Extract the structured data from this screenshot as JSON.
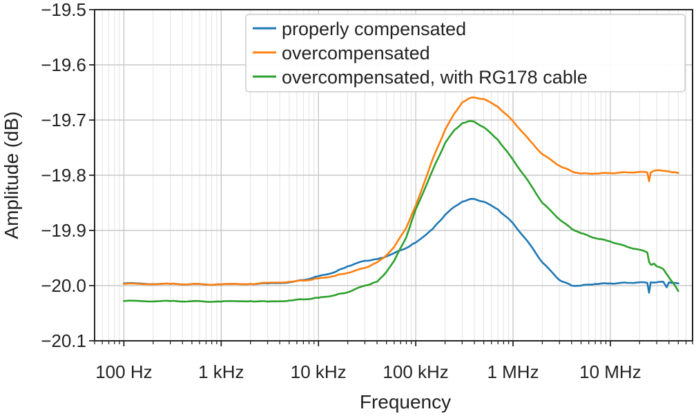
{
  "chart_data": {
    "type": "line",
    "xscale": "log",
    "xlabel": "Frequency",
    "ylabel": "Amplitude (dB)",
    "xlim": [
      50,
      70000000
    ],
    "ylim": [
      -20.1,
      -19.5
    ],
    "x_ticks": [
      {
        "value": 100,
        "label": "100 Hz"
      },
      {
        "value": 1000,
        "label": "1 kHz"
      },
      {
        "value": 10000,
        "label": "10 kHz"
      },
      {
        "value": 100000,
        "label": "100 kHz"
      },
      {
        "value": 1000000,
        "label": "1 MHz"
      },
      {
        "value": 10000000,
        "label": "10 MHz"
      }
    ],
    "y_ticks": [
      {
        "value": -19.5,
        "label": "−19.5"
      },
      {
        "value": -19.6,
        "label": "−19.6"
      },
      {
        "value": -19.7,
        "label": "−19.7"
      },
      {
        "value": -19.8,
        "label": "−19.8"
      },
      {
        "value": -19.9,
        "label": "−19.9"
      },
      {
        "value": -20.0,
        "label": "−20.0"
      },
      {
        "value": -20.1,
        "label": "−20.1"
      }
    ],
    "grid": true,
    "legend_position": "top-right",
    "series": [
      {
        "name": "properly compensated",
        "color": "#1f77b4",
        "points": [
          [
            100,
            -19.996
          ],
          [
            300,
            -19.997
          ],
          [
            1000,
            -19.998
          ],
          [
            2000,
            -19.997
          ],
          [
            3000,
            -19.996
          ],
          [
            5000,
            -19.994
          ],
          [
            7000,
            -19.99
          ],
          [
            10000,
            -19.983
          ],
          [
            15000,
            -19.975
          ],
          [
            20000,
            -19.965
          ],
          [
            30000,
            -19.955
          ],
          [
            40000,
            -19.952
          ],
          [
            50000,
            -19.947
          ],
          [
            60000,
            -19.941
          ],
          [
            80000,
            -19.932
          ],
          [
            100000,
            -19.922
          ],
          [
            150000,
            -19.897
          ],
          [
            200000,
            -19.872
          ],
          [
            250000,
            -19.857
          ],
          [
            300000,
            -19.848
          ],
          [
            350000,
            -19.844
          ],
          [
            400000,
            -19.843
          ],
          [
            500000,
            -19.848
          ],
          [
            700000,
            -19.862
          ],
          [
            1000000,
            -19.887
          ],
          [
            1500000,
            -19.926
          ],
          [
            2000000,
            -19.958
          ],
          [
            3000000,
            -19.99
          ],
          [
            4000000,
            -20.0
          ],
          [
            5000000,
            -20.0
          ],
          [
            7000000,
            -19.997
          ],
          [
            10000000,
            -19.996
          ],
          [
            15000000,
            -19.995
          ],
          [
            20000000,
            -19.994
          ],
          [
            24000000,
            -19.995
          ],
          [
            25000000,
            -20.013
          ],
          [
            26000000,
            -19.994
          ],
          [
            30000000,
            -19.994
          ],
          [
            35000000,
            -19.993
          ],
          [
            38000000,
            -20.003
          ],
          [
            40000000,
            -19.994
          ],
          [
            50000000,
            -19.996
          ]
        ]
      },
      {
        "name": "overcompensated",
        "color": "#ff7f0e",
        "points": [
          [
            100,
            -19.997
          ],
          [
            300,
            -19.997
          ],
          [
            1000,
            -19.998
          ],
          [
            2000,
            -19.997
          ],
          [
            3000,
            -19.995
          ],
          [
            5000,
            -19.993
          ],
          [
            7000,
            -19.991
          ],
          [
            10000,
            -19.987
          ],
          [
            15000,
            -19.982
          ],
          [
            20000,
            -19.977
          ],
          [
            30000,
            -19.968
          ],
          [
            40000,
            -19.958
          ],
          [
            50000,
            -19.945
          ],
          [
            60000,
            -19.93
          ],
          [
            80000,
            -19.895
          ],
          [
            100000,
            -19.855
          ],
          [
            150000,
            -19.77
          ],
          [
            200000,
            -19.718
          ],
          [
            250000,
            -19.688
          ],
          [
            300000,
            -19.668
          ],
          [
            350000,
            -19.661
          ],
          [
            400000,
            -19.659
          ],
          [
            500000,
            -19.662
          ],
          [
            700000,
            -19.676
          ],
          [
            1000000,
            -19.702
          ],
          [
            1500000,
            -19.738
          ],
          [
            2000000,
            -19.762
          ],
          [
            3000000,
            -19.783
          ],
          [
            4000000,
            -19.793
          ],
          [
            5000000,
            -19.797
          ],
          [
            7000000,
            -19.797
          ],
          [
            10000000,
            -19.796
          ],
          [
            15000000,
            -19.795
          ],
          [
            20000000,
            -19.794
          ],
          [
            24000000,
            -19.795
          ],
          [
            25000000,
            -19.811
          ],
          [
            26000000,
            -19.795
          ],
          [
            28000000,
            -19.792
          ],
          [
            30000000,
            -19.791
          ],
          [
            35000000,
            -19.792
          ],
          [
            40000000,
            -19.793
          ],
          [
            50000000,
            -19.796
          ]
        ]
      },
      {
        "name": "overcompensated, with RG178 cable",
        "color": "#2ca02c",
        "points": [
          [
            100,
            -20.028
          ],
          [
            300,
            -20.028
          ],
          [
            1000,
            -20.029
          ],
          [
            2000,
            -20.028
          ],
          [
            3000,
            -20.029
          ],
          [
            5000,
            -20.027
          ],
          [
            7000,
            -20.025
          ],
          [
            10000,
            -20.022
          ],
          [
            15000,
            -20.017
          ],
          [
            20000,
            -20.012
          ],
          [
            30000,
            -20.0
          ],
          [
            40000,
            -19.993
          ],
          [
            50000,
            -19.975
          ],
          [
            60000,
            -19.955
          ],
          [
            80000,
            -19.912
          ],
          [
            100000,
            -19.862
          ],
          [
            150000,
            -19.79
          ],
          [
            200000,
            -19.742
          ],
          [
            250000,
            -19.718
          ],
          [
            300000,
            -19.706
          ],
          [
            350000,
            -19.702
          ],
          [
            400000,
            -19.703
          ],
          [
            500000,
            -19.713
          ],
          [
            700000,
            -19.736
          ],
          [
            1000000,
            -19.772
          ],
          [
            1500000,
            -19.816
          ],
          [
            2000000,
            -19.85
          ],
          [
            3000000,
            -19.88
          ],
          [
            4000000,
            -19.897
          ],
          [
            5000000,
            -19.905
          ],
          [
            7000000,
            -19.914
          ],
          [
            10000000,
            -19.92
          ],
          [
            15000000,
            -19.93
          ],
          [
            20000000,
            -19.935
          ],
          [
            24000000,
            -19.94
          ],
          [
            25000000,
            -19.957
          ],
          [
            26000000,
            -19.962
          ],
          [
            27000000,
            -19.962
          ],
          [
            28000000,
            -19.96
          ],
          [
            30000000,
            -19.965
          ],
          [
            35000000,
            -19.97
          ],
          [
            40000000,
            -19.985
          ],
          [
            45000000,
            -19.997
          ],
          [
            50000000,
            -20.01
          ]
        ]
      }
    ]
  }
}
